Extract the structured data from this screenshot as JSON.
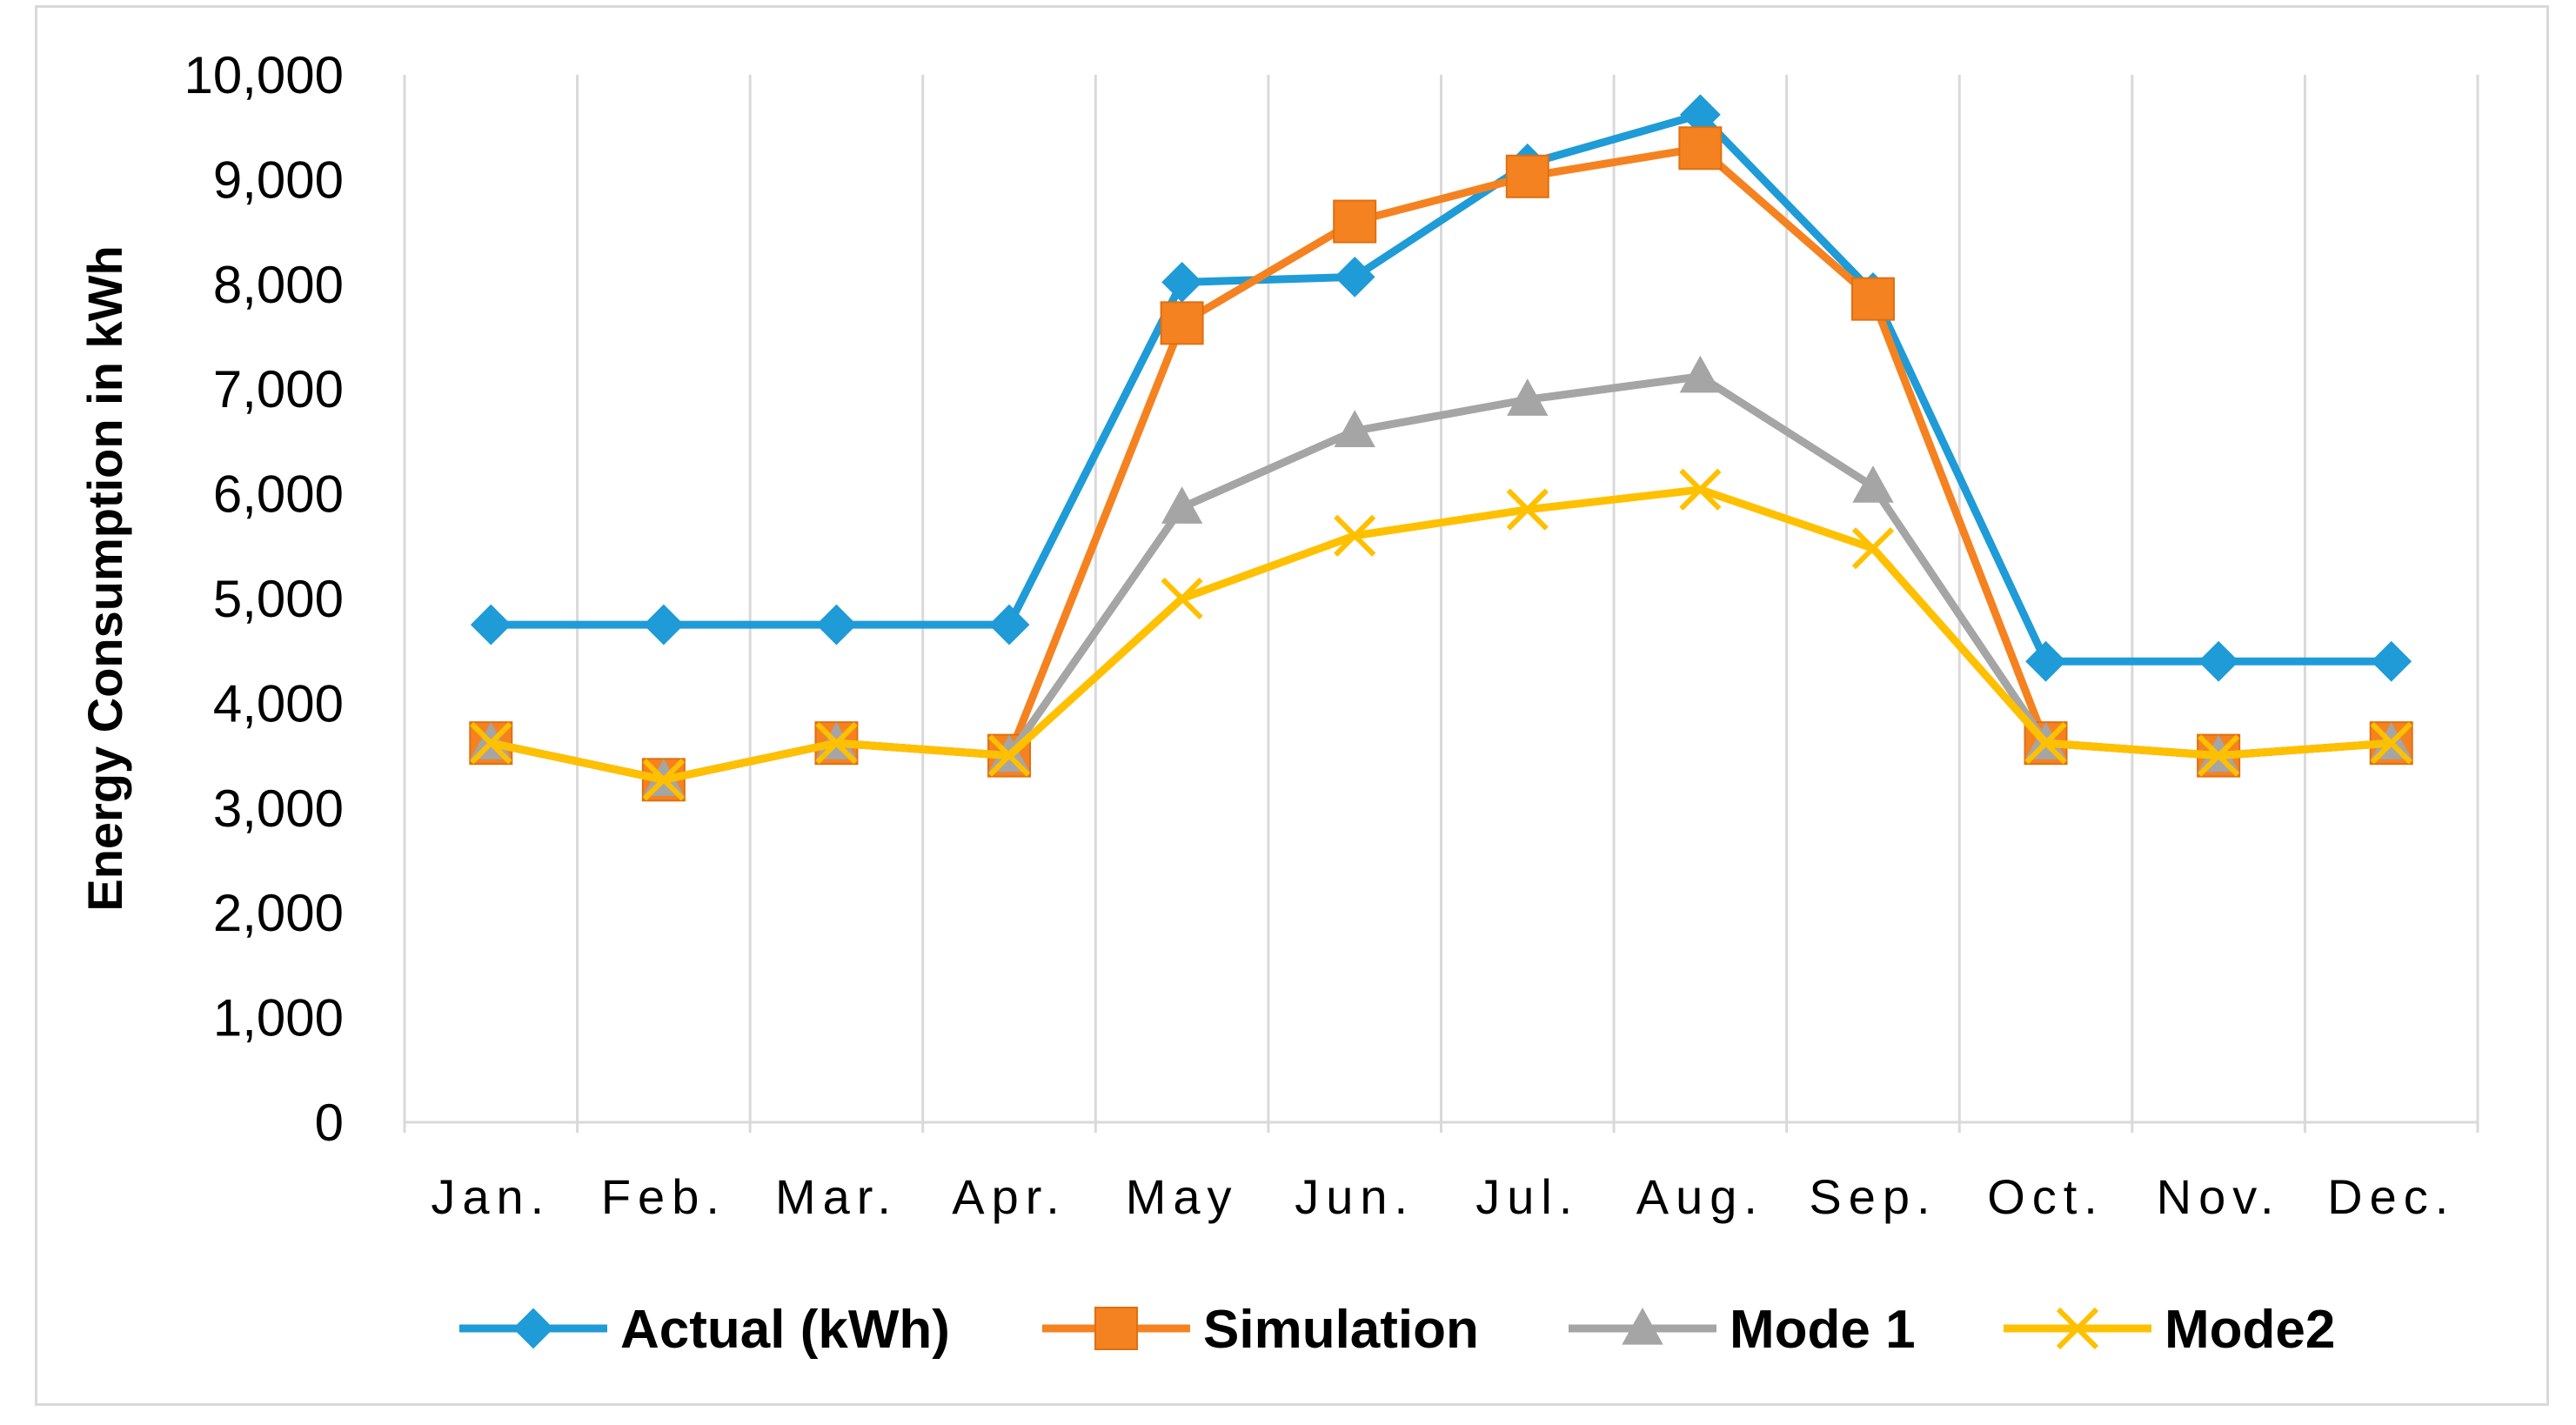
{
  "chart_data": {
    "type": "line",
    "title": "",
    "xlabel": "",
    "ylabel": "Energy Consumption in kWh",
    "ylim": [
      0,
      10000
    ],
    "yticks": [
      0,
      1000,
      2000,
      3000,
      4000,
      5000,
      6000,
      7000,
      8000,
      9000,
      10000
    ],
    "ytick_labels": [
      "0",
      "1,000",
      "2,000",
      "3,000",
      "4,000",
      "5,000",
      "6,000",
      "7,000",
      "8,000",
      "9,000",
      "10,000"
    ],
    "categories": [
      "Jan.",
      "Feb.",
      "Mar.",
      "Apr.",
      "May",
      "Jun.",
      "Jul.",
      "Aug.",
      "Sep.",
      "Oct.",
      "Nov.",
      "Dec."
    ],
    "grid": "vertical",
    "legend_position": "bottom",
    "series": [
      {
        "name": "Actual (kWh)",
        "color": "#1f9bd7",
        "marker": "diamond",
        "values": [
          4750,
          4750,
          4750,
          4750,
          8020,
          8070,
          9150,
          9620,
          7920,
          4400,
          4400,
          4400
        ]
      },
      {
        "name": "Simulation",
        "color": "#f58220",
        "marker": "square",
        "values": [
          3620,
          3270,
          3620,
          3500,
          7630,
          8600,
          9030,
          9300,
          7860,
          3620,
          3500,
          3620
        ]
      },
      {
        "name": "Mode 1",
        "color": "#a5a5a5",
        "marker": "triangle",
        "values": [
          3620,
          3270,
          3620,
          3500,
          5870,
          6600,
          6900,
          7120,
          6070,
          3620,
          3500,
          3620
        ]
      },
      {
        "name": "Mode2",
        "color": "#ffc000",
        "marker": "x",
        "values": [
          3620,
          3270,
          3620,
          3500,
          5000,
          5600,
          5850,
          6040,
          5480,
          3620,
          3500,
          3620
        ]
      }
    ]
  }
}
